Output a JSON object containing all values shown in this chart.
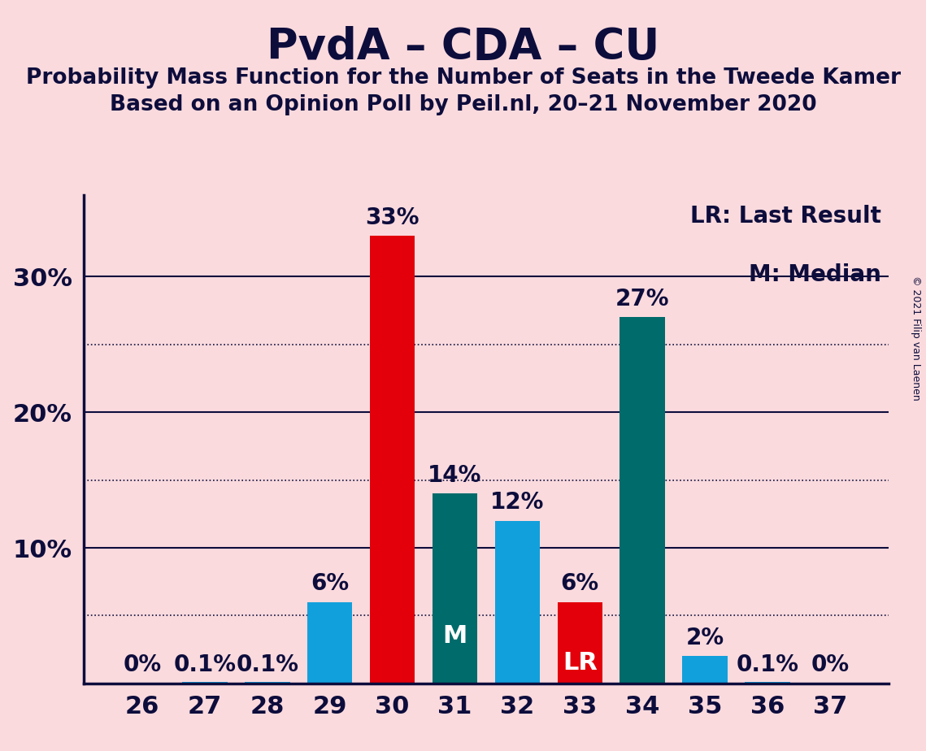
{
  "title": "PvdA – CDA – CU",
  "subtitle1": "Probability Mass Function for the Number of Seats in the Tweede Kamer",
  "subtitle2": "Based on an Opinion Poll by Peil.nl, 20–21 November 2020",
  "copyright": "© 2021 Filip van Laenen",
  "categories": [
    26,
    27,
    28,
    29,
    30,
    31,
    32,
    33,
    34,
    35,
    36,
    37
  ],
  "values": [
    0.0,
    0.1,
    0.1,
    6.0,
    33.0,
    14.0,
    12.0,
    6.0,
    27.0,
    2.0,
    0.1,
    0.0
  ],
  "bar_colors": [
    "#12A0DC",
    "#12A0DC",
    "#12A0DC",
    "#12A0DC",
    "#E3000B",
    "#006B6B",
    "#12A0DC",
    "#E3000B",
    "#006B6B",
    "#12A0DC",
    "#12A0DC",
    "#12A0DC"
  ],
  "labels": [
    "0%",
    "0.1%",
    "0.1%",
    "6%",
    "33%",
    "14%",
    "12%",
    "6%",
    "27%",
    "2%",
    "0.1%",
    "0%"
  ],
  "special_labels": {
    "31": "M",
    "33": "LR"
  },
  "legend_text1": "LR: Last Result",
  "legend_text2": "M: Median",
  "background_color": "#FADADD",
  "title_color": "#0D0D3C",
  "axis_color": "#0D0D3C",
  "ylim": [
    0,
    36
  ],
  "yticks": [
    10,
    20,
    30
  ],
  "ytick_labels": [
    "10%",
    "20%",
    "30%"
  ],
  "dotted_lines": [
    5,
    15,
    25
  ],
  "title_fontsize": 38,
  "subtitle_fontsize": 19,
  "label_fontsize": 20,
  "tick_fontsize": 22,
  "legend_fontsize": 20,
  "special_label_fontsize": 22
}
